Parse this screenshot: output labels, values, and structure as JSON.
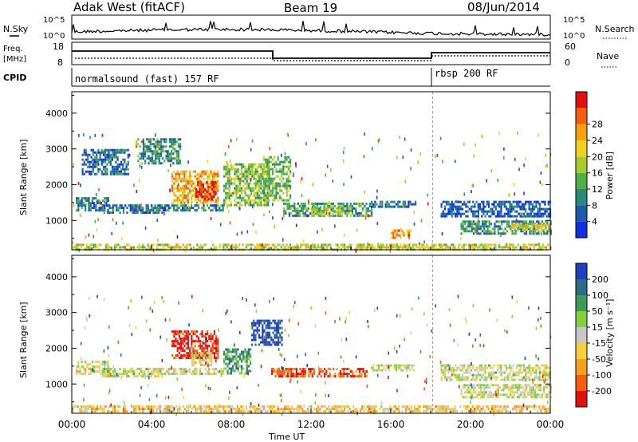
{
  "header": {
    "station": "Adak West (fitACF)",
    "beam": "Beam 19",
    "date": "08/Jun/2014"
  },
  "panels": {
    "nsky": {
      "label": "N.Sky",
      "ticks_left": [
        "10^5",
        "10^0"
      ],
      "ticks_right": [
        "10^5",
        "10^0"
      ],
      "right_label": "N.Search"
    },
    "freq": {
      "label_top": "Freq.",
      "label_unit": "[MHz]",
      "ticks_left": [
        "18",
        "8"
      ],
      "ticks_right": [
        "60",
        "0"
      ],
      "right_label": "Nave"
    },
    "cpid": {
      "label": "CPID",
      "modes": [
        {
          "name": "normalsound (fast) 157 RF",
          "start_hour": 0
        },
        {
          "name": "rbsp 200 RF",
          "start_hour": 18.1
        }
      ]
    }
  },
  "chart_data": [
    {
      "type": "heatmap",
      "name": "power",
      "ylabel": "Slant Range [km]",
      "yticks": [
        "1000",
        "2000",
        "3000",
        "4000"
      ],
      "ylim": [
        180,
        4600
      ],
      "xlim": [
        0,
        24
      ],
      "colorbar": {
        "label": "Power [dB]",
        "ticks": [
          "4",
          "8",
          "12",
          "16",
          "20",
          "24",
          "28"
        ],
        "colors": [
          "#1030e0",
          "#1c5aa8",
          "#2a8a78",
          "#4fb04a",
          "#a8cc30",
          "#f0d020",
          "#f4a010",
          "#f06010",
          "#e01010"
        ]
      },
      "regions": [
        {
          "t0": 0.2,
          "t1": 1.8,
          "r0": 1280,
          "r1": 1650,
          "level": 0.22
        },
        {
          "t0": 1.5,
          "t1": 4.5,
          "r0": 1200,
          "r1": 1450,
          "level": 0.2
        },
        {
          "t0": 4.2,
          "t1": 7.6,
          "r0": 1250,
          "r1": 1450,
          "level": 0.25
        },
        {
          "t0": 5.0,
          "t1": 7.3,
          "r0": 1500,
          "r1": 2400,
          "level": 0.7
        },
        {
          "t0": 6.2,
          "t1": 7.2,
          "r0": 1600,
          "r1": 2100,
          "level": 0.92
        },
        {
          "t0": 7.6,
          "t1": 9.8,
          "r0": 1450,
          "r1": 2600,
          "level": 0.45
        },
        {
          "t0": 9.6,
          "t1": 11.0,
          "r0": 1550,
          "r1": 2800,
          "level": 0.42
        },
        {
          "t0": 10.6,
          "t1": 15.0,
          "r0": 1150,
          "r1": 1500,
          "level": 0.35
        },
        {
          "t0": 12.0,
          "t1": 13.5,
          "r0": 1150,
          "r1": 1400,
          "level": 0.55
        },
        {
          "t0": 15.0,
          "t1": 17.2,
          "r0": 1350,
          "r1": 1550,
          "level": 0.2
        },
        {
          "t0": 16.0,
          "t1": 17.0,
          "r0": 500,
          "r1": 750,
          "level": 0.75
        },
        {
          "t0": 18.5,
          "t1": 24.0,
          "r0": 1100,
          "r1": 1550,
          "level": 0.15
        },
        {
          "t0": 19.5,
          "t1": 24.0,
          "r0": 650,
          "r1": 1000,
          "level": 0.3
        },
        {
          "t0": 22.0,
          "t1": 24.0,
          "r0": 700,
          "r1": 900,
          "level": 0.6
        },
        {
          "t0": 0.5,
          "t1": 2.8,
          "r0": 2300,
          "r1": 3000,
          "level": 0.2
        },
        {
          "t0": 3.2,
          "t1": 5.4,
          "r0": 2600,
          "r1": 3300,
          "level": 0.3
        },
        {
          "t0": 0.0,
          "t1": 24.0,
          "r0": 200,
          "r1": 350,
          "level": 0.55
        }
      ]
    },
    {
      "type": "heatmap",
      "name": "velocity",
      "ylabel": "Slant Range [km]",
      "yticks": [
        "1000",
        "2000",
        "3000",
        "4000"
      ],
      "ylim": [
        180,
        4600
      ],
      "xlim": [
        0,
        24
      ],
      "xlabel": "Time UT",
      "xticks": [
        "00:00",
        "04:00",
        "08:00",
        "12:00",
        "16:00",
        "20:00",
        "00:00"
      ],
      "colorbar": {
        "label": "Velocity [m s⁻¹]",
        "ticks": [
          "200",
          "100",
          "50",
          "15",
          "-15",
          "-50",
          "-100",
          "-200"
        ],
        "colors": [
          "#2040c0",
          "#2e6a8a",
          "#3e9a5a",
          "#80d040",
          "#c8c8c8",
          "#f4d040",
          "#f4a020",
          "#f06010",
          "#e01010"
        ]
      },
      "regions": [
        {
          "t0": 0.2,
          "t1": 1.8,
          "r0": 1280,
          "r1": 1650,
          "level": 0.5
        },
        {
          "t0": 1.5,
          "t1": 4.5,
          "r0": 1200,
          "r1": 1450,
          "level": 0.5
        },
        {
          "t0": 4.2,
          "t1": 7.6,
          "r0": 1250,
          "r1": 1450,
          "level": 0.5
        },
        {
          "t0": 5.0,
          "t1": 7.3,
          "r0": 1700,
          "r1": 2500,
          "level": 0.95
        },
        {
          "t0": 6.0,
          "t1": 7.0,
          "r0": 1500,
          "r1": 1900,
          "level": 0.55
        },
        {
          "t0": 7.6,
          "t1": 9.0,
          "r0": 1300,
          "r1": 2000,
          "level": 0.3
        },
        {
          "t0": 9.0,
          "t1": 10.5,
          "r0": 2100,
          "r1": 2800,
          "level": 0.05
        },
        {
          "t0": 10.0,
          "t1": 14.8,
          "r0": 1200,
          "r1": 1450,
          "level": 0.88
        },
        {
          "t0": 15.0,
          "t1": 17.2,
          "r0": 1350,
          "r1": 1550,
          "level": 0.5
        },
        {
          "t0": 18.5,
          "t1": 24.0,
          "r0": 1100,
          "r1": 1550,
          "level": 0.5
        },
        {
          "t0": 19.5,
          "t1": 24.0,
          "r0": 650,
          "r1": 1000,
          "level": 0.5
        },
        {
          "t0": 0.0,
          "t1": 24.0,
          "r0": 200,
          "r1": 400,
          "level": 0.62
        }
      ]
    }
  ]
}
